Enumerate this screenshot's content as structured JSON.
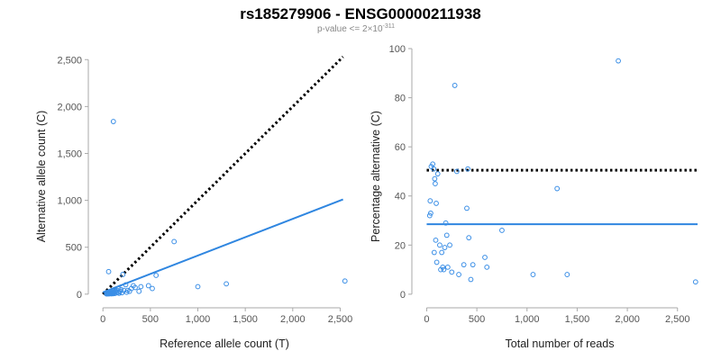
{
  "header": {
    "title": "rs185279906 - ENSG00000211938",
    "subtitle_prefix": "p-value <= 2×10",
    "subtitle_exponent": "-311"
  },
  "colors": {
    "points": "#3a8ee6",
    "fit_line": "#2f86e0",
    "reference_line": "#000000"
  },
  "chart_data": [
    {
      "type": "scatter",
      "title": "",
      "xlabel": "Reference allele count (T)",
      "ylabel": "Alternative allele count (C)",
      "xlim": [
        -40,
        2600
      ],
      "ylim": [
        -40,
        2560
      ],
      "xticks": [
        0,
        500,
        1000,
        1500,
        2000,
        2500
      ],
      "xtick_labels": [
        "0",
        "500",
        "1,000",
        "1,500",
        "2,000",
        "2,500"
      ],
      "yticks": [
        0,
        500,
        1000,
        1500,
        2000,
        2500
      ],
      "ytick_labels": [
        "0",
        "500",
        "1,000",
        "1,500",
        "2,000",
        "2,500"
      ],
      "grid": false,
      "reference_line": {
        "style": "dotted",
        "x": [
          0,
          2530
        ],
        "y": [
          0,
          2530
        ]
      },
      "fit_line": {
        "style": "solid",
        "x": [
          0,
          2530
        ],
        "y": [
          20,
          1010
        ]
      },
      "points": [
        {
          "x": 38,
          "y": 2
        },
        {
          "x": 42,
          "y": 8
        },
        {
          "x": 48,
          "y": 4
        },
        {
          "x": 52,
          "y": 12
        },
        {
          "x": 56,
          "y": 5
        },
        {
          "x": 60,
          "y": 18
        },
        {
          "x": 64,
          "y": 3
        },
        {
          "x": 68,
          "y": 10
        },
        {
          "x": 72,
          "y": 6
        },
        {
          "x": 76,
          "y": 22
        },
        {
          "x": 80,
          "y": 9
        },
        {
          "x": 84,
          "y": 14
        },
        {
          "x": 88,
          "y": 4
        },
        {
          "x": 92,
          "y": 26
        },
        {
          "x": 96,
          "y": 8
        },
        {
          "x": 100,
          "y": 16
        },
        {
          "x": 105,
          "y": 5
        },
        {
          "x": 110,
          "y": 30
        },
        {
          "x": 115,
          "y": 11
        },
        {
          "x": 120,
          "y": 20
        },
        {
          "x": 125,
          "y": 7
        },
        {
          "x": 130,
          "y": 25
        },
        {
          "x": 135,
          "y": 35
        },
        {
          "x": 140,
          "y": 13
        },
        {
          "x": 150,
          "y": 40
        },
        {
          "x": 160,
          "y": 20
        },
        {
          "x": 165,
          "y": 60
        },
        {
          "x": 170,
          "y": 10
        },
        {
          "x": 180,
          "y": 30
        },
        {
          "x": 190,
          "y": 50
        },
        {
          "x": 200,
          "y": 15
        },
        {
          "x": 210,
          "y": 210
        },
        {
          "x": 220,
          "y": 40
        },
        {
          "x": 240,
          "y": 100
        },
        {
          "x": 250,
          "y": 20
        },
        {
          "x": 260,
          "y": 40
        },
        {
          "x": 280,
          "y": 30
        },
        {
          "x": 300,
          "y": 60
        },
        {
          "x": 320,
          "y": 90
        },
        {
          "x": 340,
          "y": 70
        },
        {
          "x": 380,
          "y": 30
        },
        {
          "x": 400,
          "y": 80
        },
        {
          "x": 480,
          "y": 90
        },
        {
          "x": 520,
          "y": 60
        },
        {
          "x": 560,
          "y": 200
        },
        {
          "x": 750,
          "y": 560
        },
        {
          "x": 1000,
          "y": 80
        },
        {
          "x": 1300,
          "y": 110
        },
        {
          "x": 2550,
          "y": 140
        },
        {
          "x": 110,
          "y": 1840
        },
        {
          "x": 60,
          "y": 240
        }
      ]
    },
    {
      "type": "scatter",
      "title": "",
      "xlabel": "Total number of reads",
      "ylabel": "Percentage alternative (C)",
      "xlim": [
        -40,
        2700
      ],
      "ylim": [
        -1.5,
        100
      ],
      "xticks": [
        0,
        500,
        1000,
        1500,
        2000,
        2500
      ],
      "xtick_labels": [
        "0",
        "500",
        "1,000",
        "1,500",
        "2,000",
        "2,500"
      ],
      "yticks": [
        0,
        20,
        40,
        60,
        80,
        100
      ],
      "ytick_labels": [
        "0",
        "20",
        "40",
        "60",
        "80",
        "100"
      ],
      "grid": false,
      "reference_line": {
        "style": "dotted",
        "x": [
          0,
          2700
        ],
        "y": [
          50.5,
          50.5
        ]
      },
      "fit_line": {
        "style": "solid",
        "x": [
          0,
          2700
        ],
        "y": [
          28.5,
          28.5
        ]
      },
      "points": [
        {
          "x": 30,
          "y": 32
        },
        {
          "x": 35,
          "y": 38
        },
        {
          "x": 40,
          "y": 33
        },
        {
          "x": 45,
          "y": 52
        },
        {
          "x": 60,
          "y": 53
        },
        {
          "x": 70,
          "y": 51
        },
        {
          "x": 75,
          "y": 17
        },
        {
          "x": 80,
          "y": 47
        },
        {
          "x": 85,
          "y": 45
        },
        {
          "x": 90,
          "y": 22
        },
        {
          "x": 95,
          "y": 37
        },
        {
          "x": 100,
          "y": 13
        },
        {
          "x": 110,
          "y": 49
        },
        {
          "x": 130,
          "y": 20
        },
        {
          "x": 140,
          "y": 10
        },
        {
          "x": 150,
          "y": 17
        },
        {
          "x": 160,
          "y": 11
        },
        {
          "x": 170,
          "y": 10
        },
        {
          "x": 180,
          "y": 19
        },
        {
          "x": 190,
          "y": 29
        },
        {
          "x": 200,
          "y": 24
        },
        {
          "x": 210,
          "y": 11
        },
        {
          "x": 230,
          "y": 20
        },
        {
          "x": 250,
          "y": 9
        },
        {
          "x": 280,
          "y": 85
        },
        {
          "x": 300,
          "y": 50
        },
        {
          "x": 320,
          "y": 8
        },
        {
          "x": 370,
          "y": 12
        },
        {
          "x": 400,
          "y": 35
        },
        {
          "x": 410,
          "y": 51
        },
        {
          "x": 420,
          "y": 23
        },
        {
          "x": 440,
          "y": 6
        },
        {
          "x": 460,
          "y": 12
        },
        {
          "x": 580,
          "y": 15
        },
        {
          "x": 600,
          "y": 11
        },
        {
          "x": 750,
          "y": 26
        },
        {
          "x": 1060,
          "y": 8
        },
        {
          "x": 1300,
          "y": 43
        },
        {
          "x": 1400,
          "y": 8
        },
        {
          "x": 1910,
          "y": 95
        },
        {
          "x": 2680,
          "y": 5
        }
      ]
    }
  ]
}
